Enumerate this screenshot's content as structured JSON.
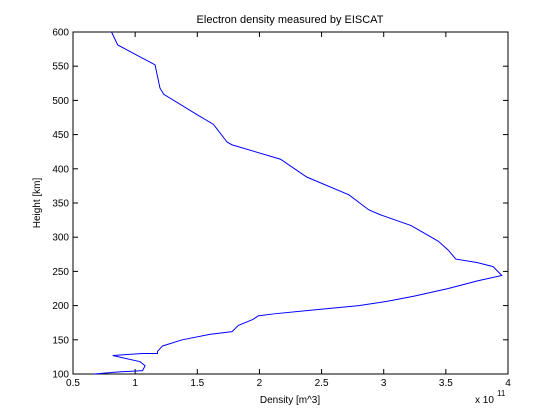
{
  "chart_data": {
    "type": "line",
    "title": "Electron density measured by EISCAT",
    "xlabel": "Density [m^3]",
    "ylabel": "Height [km]",
    "x_exponent_label": "x 10",
    "x_exponent": "11",
    "xlim": [
      0.5,
      4
    ],
    "ylim": [
      100,
      600
    ],
    "xticks": [
      0.5,
      1,
      1.5,
      2,
      2.5,
      3,
      3.5,
      4
    ],
    "xtick_labels": [
      "0.5",
      "1",
      "1.5",
      "2",
      "2.5",
      "3",
      "3.5",
      "4"
    ],
    "yticks": [
      100,
      150,
      200,
      250,
      300,
      350,
      400,
      450,
      500,
      550,
      600
    ],
    "ytick_labels": [
      "100",
      "150",
      "200",
      "250",
      "300",
      "350",
      "400",
      "450",
      "500",
      "550",
      "600"
    ],
    "grid": false,
    "line_color": "#0000ff",
    "series": [
      {
        "x": [
          0.67,
          0.86,
          1.06,
          1.08,
          1.04,
          0.82,
          1.06,
          1.18,
          1.18,
          1.22,
          1.38,
          1.6,
          1.78,
          1.83,
          1.95,
          1.99,
          2.12,
          2.4,
          2.8,
          3.02,
          3.25,
          3.52,
          3.75,
          3.95,
          3.88,
          3.75,
          3.58,
          3.52,
          3.44,
          3.22,
          2.97,
          2.88,
          2.72,
          2.38,
          2.17,
          1.78,
          1.74,
          1.63,
          1.5,
          1.23,
          1.2,
          1.16,
          0.86,
          0.81
        ],
        "y": [
          100,
          103,
          105,
          112,
          118,
          127,
          130,
          130,
          133,
          141,
          150,
          158,
          162,
          171,
          180,
          185,
          188,
          193,
          200,
          206,
          214,
          225,
          236,
          244,
          257,
          263,
          268,
          281,
          294,
          317,
          333,
          340,
          362,
          388,
          414,
          435,
          439,
          465,
          479,
          509,
          518,
          552,
          581,
          600
        ]
      }
    ]
  }
}
